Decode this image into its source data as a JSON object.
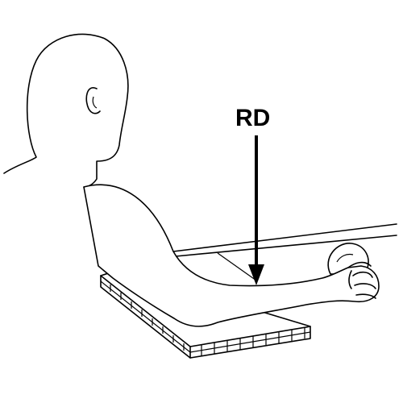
{
  "figure": {
    "arrow_label": "RD"
  }
}
